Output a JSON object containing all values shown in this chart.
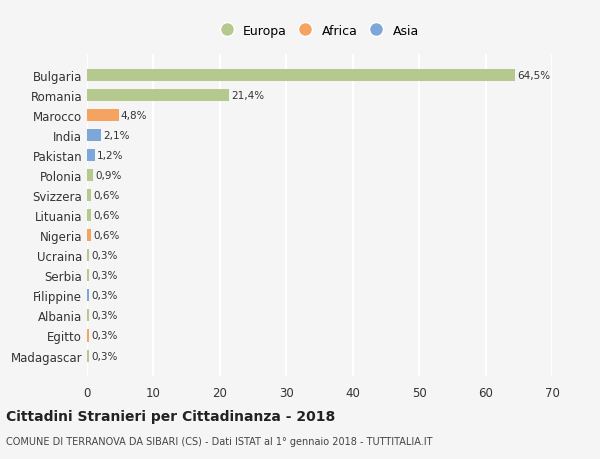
{
  "categories": [
    "Madagascar",
    "Egitto",
    "Albania",
    "Filippine",
    "Serbia",
    "Ucraina",
    "Nigeria",
    "Lituania",
    "Svizzera",
    "Polonia",
    "Pakistan",
    "India",
    "Marocco",
    "Romania",
    "Bulgaria"
  ],
  "values": [
    0.3,
    0.3,
    0.3,
    0.3,
    0.3,
    0.3,
    0.6,
    0.6,
    0.6,
    0.9,
    1.2,
    2.1,
    4.8,
    21.4,
    64.5
  ],
  "labels": [
    "0,3%",
    "0,3%",
    "0,3%",
    "0,3%",
    "0,3%",
    "0,3%",
    "0,6%",
    "0,6%",
    "0,6%",
    "0,9%",
    "1,2%",
    "2,1%",
    "4,8%",
    "21,4%",
    "64,5%"
  ],
  "colors": [
    "#b5c98e",
    "#f4a460",
    "#b5c98e",
    "#7da7d9",
    "#b5c98e",
    "#b5c98e",
    "#f4a460",
    "#b5c98e",
    "#b5c98e",
    "#b5c98e",
    "#7da7d9",
    "#7da7d9",
    "#f4a460",
    "#b5c98e",
    "#b5c98e"
  ],
  "legend_labels": [
    "Europa",
    "Africa",
    "Asia"
  ],
  "legend_colors": [
    "#b5c98e",
    "#f4a460",
    "#7da7d9"
  ],
  "xlim": [
    0,
    70
  ],
  "xticks": [
    0,
    10,
    20,
    30,
    40,
    50,
    60,
    70
  ],
  "title": "Cittadini Stranieri per Cittadinanza - 2018",
  "subtitle": "COMUNE DI TERRANOVA DA SIBARI (CS) - Dati ISTAT al 1° gennaio 2018 - TUTTITALIA.IT",
  "bg_color": "#f5f5f5",
  "grid_color": "#ffffff",
  "bar_height": 0.6
}
